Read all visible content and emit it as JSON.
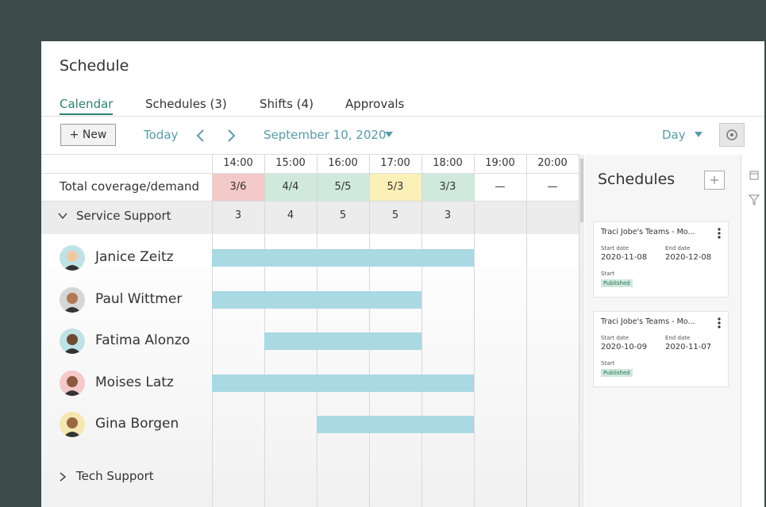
{
  "header": {
    "title": "Schedule"
  },
  "tabs": [
    "Calendar",
    "Schedules (3)",
    "Shifts (4)",
    "Approvals"
  ],
  "toolbar": {
    "new": "+ New",
    "today": "Today",
    "date": "September 10, 2020",
    "view": "Day"
  },
  "grid": {
    "hours": [
      "14:00",
      "15:00",
      "16:00",
      "17:00",
      "18:00",
      "19:00",
      "20:00"
    ],
    "coverage_label": "Total coverage/demand",
    "coverage": [
      "3/6",
      "4/4",
      "5/5",
      "5/3",
      "3/3",
      "—",
      "—"
    ],
    "coverage_colors": [
      "#f3c9c9",
      "#cfe9dd",
      "#cfe9dd",
      "#fbf0b8",
      "#cfe9dd",
      "#ffffff",
      "#ffffff"
    ],
    "groups": [
      {
        "name": "Service Support",
        "counts": [
          3,
          4,
          5,
          5,
          3
        ],
        "members": [
          {
            "name": "Janice Zeitz",
            "start": 14,
            "end": 19
          },
          {
            "name": "Paul Wittmer",
            "start": 14,
            "end": 18
          },
          {
            "name": "Fatima Alonzo",
            "start": 15,
            "end": 18
          },
          {
            "name": "Moises Latz",
            "start": 14,
            "end": 19
          },
          {
            "name": "Gina Borgen",
            "start": 16,
            "end": 19
          }
        ]
      },
      {
        "name": "Tech Support"
      }
    ]
  },
  "side": {
    "title": "Schedules",
    "cards": [
      {
        "title": "Traci Jobe's Teams - Mo...",
        "start_label": "Start date",
        "start": "2020-11-08",
        "end_label": "End date",
        "end": "2020-12-08",
        "type": "Start",
        "status": "Published"
      },
      {
        "title": "Traci Jobe's Teams - Mo...",
        "start_label": "Start date",
        "start": "2020-10-09",
        "end_label": "End date",
        "end": "2020-11-07",
        "type": "Start",
        "status": "Published"
      }
    ]
  }
}
